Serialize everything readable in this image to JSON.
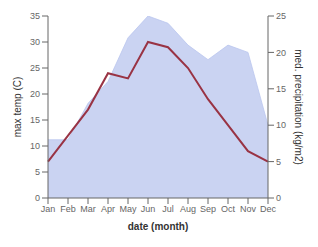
{
  "chart_data": {
    "type": "line",
    "xlabel": "date (month)",
    "ylabel": "max temp (C)",
    "y2label": "med. precipitation (kg/m2)",
    "categories": [
      "Jan",
      "Feb",
      "Mar",
      "Apr",
      "May",
      "Jun",
      "Jul",
      "Aug",
      "Sep",
      "Oct",
      "Nov",
      "Dec"
    ],
    "series": [
      {
        "type": "area",
        "axis": "y2",
        "color": "#b8c4ee",
        "values": [
          8,
          8,
          13,
          16,
          22,
          25,
          24,
          21,
          19,
          21,
          20,
          10
        ]
      },
      {
        "type": "line",
        "axis": "y",
        "color": "#993344",
        "values": [
          7,
          12,
          17,
          24,
          23,
          30,
          29,
          25,
          19,
          14,
          9,
          7
        ]
      }
    ],
    "ylim": [
      0,
      35
    ],
    "yticks": [
      0,
      5,
      10,
      15,
      20,
      25,
      30,
      35
    ],
    "y2lim": [
      0,
      25
    ],
    "y2ticks": [
      0,
      5,
      10,
      15,
      20,
      25
    ],
    "grid": false
  }
}
